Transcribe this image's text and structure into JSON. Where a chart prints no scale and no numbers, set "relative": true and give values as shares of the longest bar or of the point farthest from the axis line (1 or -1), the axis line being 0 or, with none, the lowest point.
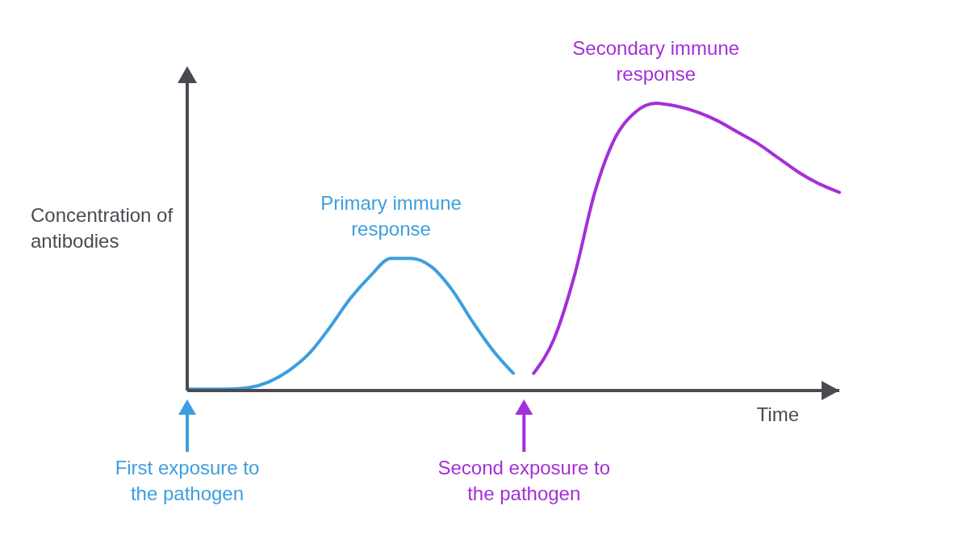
{
  "chart_data": {
    "type": "line",
    "relative": true,
    "xlabel": "Time",
    "ylabel": "Concentration of antibodies",
    "marker": "none",
    "categories": [
      null,
      null,
      null,
      null,
      null,
      null,
      null,
      null,
      null,
      null,
      null,
      null,
      null,
      null,
      null,
      null,
      null,
      null,
      null,
      null,
      null,
      null,
      null,
      null,
      null,
      null,
      null,
      null,
      null,
      null,
      null,
      null,
      null
    ],
    "series": [
      {
        "name": "Primary immune response",
        "color": "#3e9ede",
        "values": [
          0.005,
          0.005,
          0.005,
          0.01,
          0.03,
          0.07,
          0.13,
          0.22,
          0.32,
          0.4,
          0.46,
          0.46,
          0.43,
          0.35,
          0.24,
          0.14,
          0.06,
          null,
          null,
          null,
          null,
          null,
          null,
          null,
          null,
          null,
          null,
          null,
          null,
          null,
          null,
          null,
          null
        ]
      },
      {
        "name": "Secondary immune response",
        "color": "#a42fd8",
        "values": [
          null,
          null,
          null,
          null,
          null,
          null,
          null,
          null,
          null,
          null,
          null,
          null,
          null,
          null,
          null,
          null,
          null,
          0.06,
          0.18,
          0.4,
          0.69,
          0.88,
          0.97,
          1,
          0.99,
          0.97,
          0.94,
          0.9,
          0.86,
          0.81,
          0.76,
          0.72,
          0.69
        ]
      }
    ],
    "annotations": [
      "First exposure to the pathogen",
      "Second exposure to the pathogen"
    ]
  }
}
